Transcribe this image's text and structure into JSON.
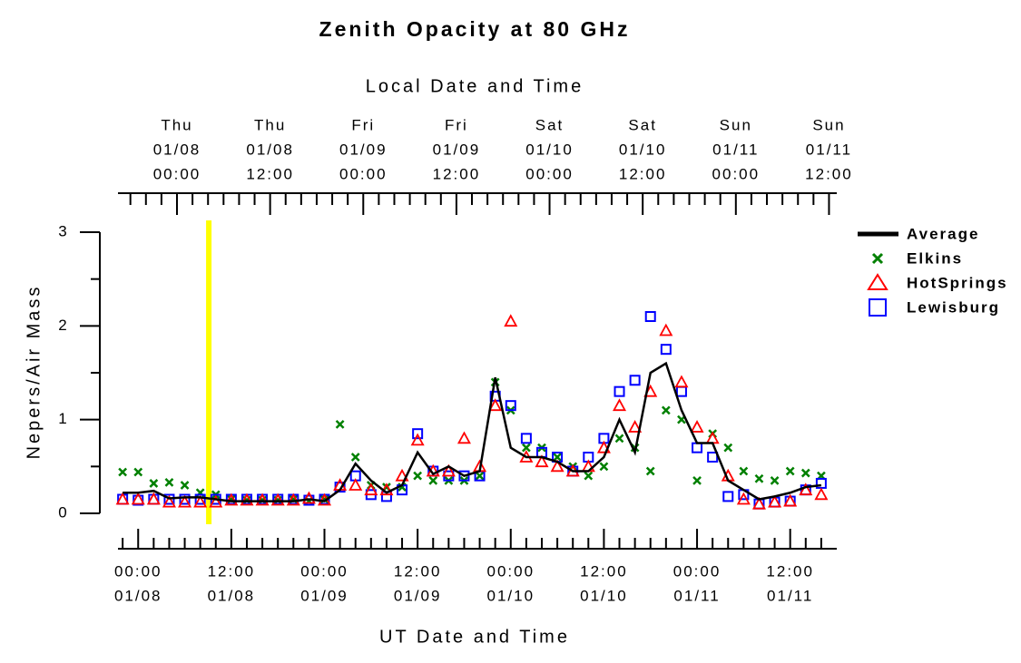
{
  "chart_data": {
    "type": "scatter",
    "title": "Zenith Opacity at 80 GHz",
    "x2_label": "Local Date and Time",
    "x_label": "UT Date and Time",
    "y_label": "Nepers/Air Mass",
    "xlim": [
      -2.6,
      90
    ],
    "ylim": [
      0,
      3
    ],
    "yticks": [
      0,
      1,
      2,
      3
    ],
    "yminor_ticks": [
      0.5,
      1.5,
      2.5
    ],
    "xticks": [
      {
        "value": 0,
        "label": "00:00"
      },
      {
        "value": 12,
        "label": "12:00"
      },
      {
        "value": 24,
        "label": "00:00"
      },
      {
        "value": 36,
        "label": "12:00"
      },
      {
        "value": 48,
        "label": "00:00"
      },
      {
        "value": 60,
        "label": "12:00"
      },
      {
        "value": 72,
        "label": "00:00"
      },
      {
        "value": 84,
        "label": "12:00"
      }
    ],
    "xtick_dates": [
      "01/08",
      "01/08",
      "01/09",
      "01/09",
      "01/10",
      "01/10",
      "01/11",
      "01/11"
    ],
    "xminor_ticks": [
      -2,
      2,
      4,
      6,
      8,
      10,
      14,
      16,
      18,
      20,
      22,
      26,
      28,
      30,
      32,
      34,
      38,
      40,
      42,
      44,
      46,
      50,
      52,
      54,
      56,
      58,
      62,
      64,
      66,
      68,
      70,
      74,
      76,
      78,
      80,
      82,
      86,
      88
    ],
    "x2ticks": [
      {
        "value": 5,
        "label": "00:00"
      },
      {
        "value": 17,
        "label": "12:00"
      },
      {
        "value": 29,
        "label": "00:00"
      },
      {
        "value": 41,
        "label": "12:00"
      },
      {
        "value": 53,
        "label": "00:00"
      },
      {
        "value": 65,
        "label": "12:00"
      },
      {
        "value": 77,
        "label": "00:00"
      },
      {
        "value": 89,
        "label": "12:00"
      }
    ],
    "x2tick_days": [
      "Thu",
      "Thu",
      "Fri",
      "Fri",
      "Sat",
      "Sat",
      "Sun",
      "Sun"
    ],
    "x2tick_dates": [
      "01/08",
      "01/08",
      "01/09",
      "01/09",
      "01/10",
      "01/10",
      "01/11",
      "01/11"
    ],
    "x2minor_ticks": [
      -1,
      1,
      3,
      7,
      9,
      11,
      13,
      15,
      19,
      21,
      23,
      25,
      27,
      31,
      33,
      35,
      37,
      39,
      43,
      45,
      47,
      49,
      51,
      55,
      57,
      59,
      61,
      63,
      67,
      69,
      71,
      73,
      75,
      79,
      81,
      83,
      85,
      87
    ],
    "highlight_x": 9.1,
    "highlight_color": "#ffff00",
    "x": [
      -2,
      0,
      2,
      4,
      6,
      8,
      10,
      12,
      14,
      16,
      18,
      20,
      22,
      24,
      26,
      28,
      30,
      32,
      34,
      36,
      38,
      40,
      42,
      44,
      46,
      48,
      50,
      52,
      54,
      56,
      58,
      60,
      62,
      64,
      66,
      68,
      70,
      72,
      74,
      76,
      78,
      80,
      82,
      84,
      86,
      88
    ],
    "series": [
      {
        "name": "Average",
        "color": "#000000",
        "marker": "line",
        "values": [
          0.22,
          0.22,
          0.24,
          0.16,
          0.17,
          0.17,
          0.15,
          0.13,
          0.13,
          0.13,
          0.13,
          0.13,
          0.15,
          0.13,
          0.25,
          0.53,
          0.35,
          0.22,
          0.3,
          0.65,
          0.42,
          0.5,
          0.4,
          0.45,
          1.45,
          0.7,
          0.6,
          0.6,
          0.55,
          0.45,
          0.45,
          0.6,
          1.0,
          0.65,
          1.5,
          1.6,
          1.1,
          0.75,
          0.75,
          0.35,
          0.25,
          0.15,
          0.18,
          0.22,
          0.28,
          0.3
        ]
      },
      {
        "name": "Elkins",
        "color": "#008000",
        "marker": "x",
        "values": [
          0.44,
          0.44,
          0.32,
          0.33,
          0.3,
          0.22,
          0.2,
          0.15,
          0.14,
          0.14,
          0.14,
          0.15,
          0.13,
          0.15,
          0.95,
          0.6,
          0.3,
          0.28,
          0.28,
          0.4,
          0.35,
          0.35,
          0.35,
          0.4,
          1.4,
          1.1,
          0.7,
          0.7,
          0.6,
          0.5,
          0.4,
          0.5,
          0.8,
          0.7,
          0.45,
          1.1,
          1.0,
          0.35,
          0.85,
          0.7,
          0.45,
          0.37,
          0.35,
          0.45,
          0.43,
          0.4
        ]
      },
      {
        "name": "HotSprings",
        "color": "#ff0000",
        "marker": "triangle",
        "values": [
          0.15,
          0.15,
          0.15,
          0.12,
          0.12,
          0.12,
          0.12,
          0.14,
          0.14,
          0.14,
          0.14,
          0.14,
          0.16,
          0.14,
          0.3,
          0.3,
          0.25,
          0.25,
          0.4,
          0.78,
          0.45,
          0.45,
          0.8,
          0.5,
          1.15,
          2.05,
          0.6,
          0.55,
          0.5,
          0.45,
          0.5,
          0.7,
          1.15,
          0.92,
          1.3,
          1.95,
          1.4,
          0.92,
          0.8,
          0.4,
          0.15,
          0.1,
          0.12,
          0.13,
          0.25,
          0.2
        ]
      },
      {
        "name": "Lewisburg",
        "color": "#0000ff",
        "marker": "square",
        "values": [
          0.15,
          0.14,
          0.15,
          0.15,
          0.15,
          0.15,
          0.15,
          0.15,
          0.15,
          0.15,
          0.15,
          0.15,
          0.14,
          0.15,
          0.28,
          0.4,
          0.2,
          0.18,
          0.25,
          0.85,
          0.45,
          0.4,
          0.4,
          0.4,
          1.25,
          1.15,
          0.8,
          0.65,
          0.6,
          0.45,
          0.6,
          0.8,
          1.3,
          1.42,
          2.1,
          1.75,
          1.3,
          0.7,
          0.6,
          0.18,
          0.2,
          0.1,
          0.12,
          0.13,
          0.25,
          0.32
        ]
      }
    ]
  }
}
